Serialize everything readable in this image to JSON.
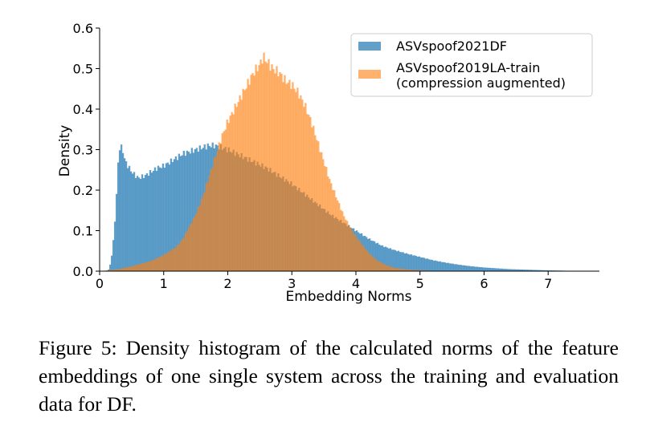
{
  "chart_data": {
    "type": "bar",
    "xlabel": "Embedding Norms",
    "ylabel": "Density",
    "xlim": [
      0,
      7.8
    ],
    "ylim": [
      0,
      0.6
    ],
    "x_ticks": [
      "0",
      "1",
      "2",
      "3",
      "4",
      "5",
      "6",
      "7"
    ],
    "y_ticks": [
      "0.0",
      "0.1",
      "0.2",
      "0.3",
      "0.4",
      "0.5",
      "0.6"
    ],
    "legend_position": "top-right",
    "grid": false,
    "series": [
      {
        "name": "ASVspoof2021DF",
        "color": "#1f77b4",
        "x": [
          0.0,
          0.1,
          0.15,
          0.2,
          0.25,
          0.3,
          0.35,
          0.4,
          0.5,
          0.6,
          0.7,
          0.8,
          0.9,
          1.0,
          1.1,
          1.2,
          1.3,
          1.4,
          1.5,
          1.6,
          1.7,
          1.8,
          1.9,
          2.0,
          2.2,
          2.4,
          2.6,
          2.8,
          3.0,
          3.2,
          3.4,
          3.6,
          3.8,
          4.0,
          4.2,
          4.4,
          4.6,
          4.8,
          5.0,
          5.2,
          5.4,
          5.6,
          5.8,
          6.0,
          6.2,
          6.4,
          6.6,
          6.8,
          7.0,
          7.3,
          7.6,
          7.8
        ],
        "values": [
          0.0,
          0.0,
          0.005,
          0.05,
          0.15,
          0.305,
          0.305,
          0.27,
          0.245,
          0.23,
          0.235,
          0.245,
          0.255,
          0.26,
          0.27,
          0.28,
          0.29,
          0.295,
          0.3,
          0.305,
          0.31,
          0.31,
          0.305,
          0.3,
          0.285,
          0.27,
          0.255,
          0.235,
          0.215,
          0.19,
          0.165,
          0.14,
          0.12,
          0.1,
          0.08,
          0.063,
          0.052,
          0.043,
          0.035,
          0.027,
          0.021,
          0.016,
          0.012,
          0.009,
          0.007,
          0.005,
          0.004,
          0.003,
          0.002,
          0.001,
          0.0005,
          0.0
        ]
      },
      {
        "name": "ASVspoof2019LA-train\n(compression augmented)",
        "color": "#ff7f0e",
        "x": [
          0.0,
          0.3,
          0.5,
          0.8,
          1.0,
          1.1,
          1.2,
          1.3,
          1.4,
          1.5,
          1.6,
          1.7,
          1.8,
          1.9,
          2.0,
          2.1,
          2.2,
          2.3,
          2.4,
          2.5,
          2.55,
          2.6,
          2.7,
          2.8,
          2.9,
          3.0,
          3.1,
          3.2,
          3.3,
          3.4,
          3.5,
          3.6,
          3.7,
          3.8,
          3.9,
          4.0,
          4.1,
          4.2,
          4.3,
          4.4,
          4.5,
          4.6,
          4.8,
          5.0,
          5.2,
          5.4,
          5.6,
          5.8,
          6.0
        ],
        "values": [
          0.0,
          0.005,
          0.012,
          0.025,
          0.04,
          0.05,
          0.06,
          0.08,
          0.11,
          0.14,
          0.18,
          0.23,
          0.28,
          0.33,
          0.37,
          0.4,
          0.43,
          0.46,
          0.49,
          0.51,
          0.53,
          0.52,
          0.5,
          0.49,
          0.47,
          0.46,
          0.44,
          0.41,
          0.37,
          0.32,
          0.27,
          0.22,
          0.18,
          0.14,
          0.11,
          0.085,
          0.065,
          0.045,
          0.03,
          0.02,
          0.013,
          0.008,
          0.004,
          0.002,
          0.001,
          0.0005,
          0.0002,
          0.0001,
          0.0
        ]
      }
    ]
  },
  "caption": "Figure 5: Density histogram of the calculated norms of the feature embeddings of one single system across the training and evaluation data for DF."
}
